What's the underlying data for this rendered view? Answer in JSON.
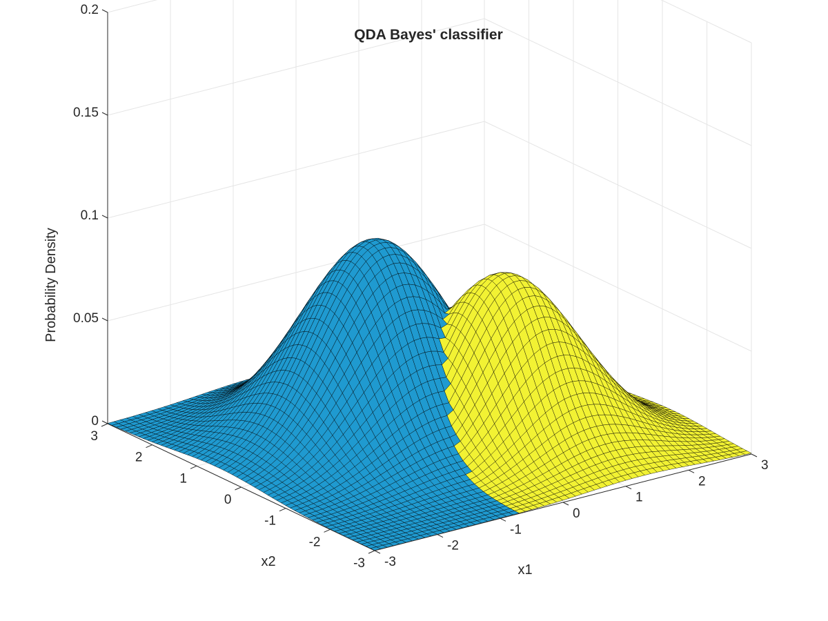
{
  "chart_data": {
    "type": "surface",
    "title": "QDA Bayes' classifier",
    "xlabel": "x1",
    "ylabel": "x2",
    "zlabel": "Probability Density",
    "xlim": [
      -3,
      3
    ],
    "ylim": [
      -3,
      3
    ],
    "zlim": [
      0,
      0.2
    ],
    "x_ticks": [
      "-3",
      "-2",
      "-1",
      "0",
      "1",
      "2",
      "3"
    ],
    "y_ticks": [
      "-3",
      "-2",
      "-1",
      "0",
      "1",
      "2",
      "3"
    ],
    "z_ticks": [
      "0",
      "0.05",
      "0.1",
      "0.15",
      "0.2"
    ],
    "grid": true,
    "colors": {
      "class_1": "#1f9ad0",
      "class_2": "#f2f233",
      "edge": "#000000",
      "grid": "#e5e5e5",
      "axis": "#262626"
    },
    "series": [
      {
        "color_key": "class_1",
        "mean": [
          -0.5,
          0.5
        ],
        "cov": [
          [
            1,
            0
          ],
          [
            0,
            1
          ]
        ],
        "prior": 0.6
      },
      {
        "color_key": "class_2",
        "mean": [
          0.7,
          -0.7
        ],
        "cov": [
          [
            0.8,
            -0.2
          ],
          [
            -0.2,
            0.8
          ]
        ],
        "prior": 0.4
      }
    ]
  }
}
